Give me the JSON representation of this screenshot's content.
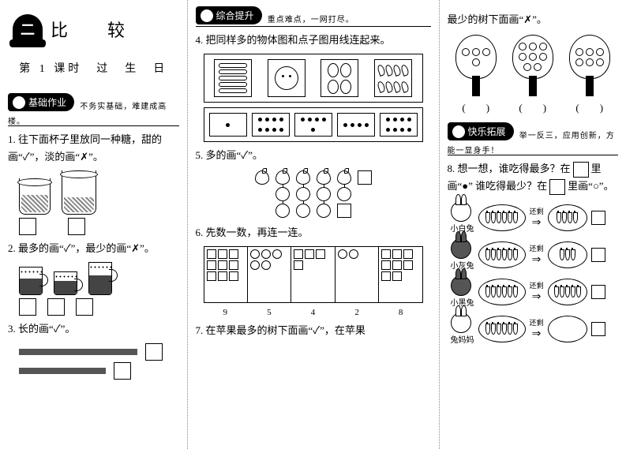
{
  "unit": {
    "badge": "二",
    "title": "比　较"
  },
  "lesson": "第 1 课时　过　生　日",
  "sections": {
    "basic": {
      "label": "基础作业",
      "sub": "不务实基础，难建成高楼。"
    },
    "comp": {
      "label": "综合提升",
      "sub": "重点难点，一网打尽。"
    },
    "ext": {
      "label": "快乐拓展",
      "sub": "举一反三，应用创新，方能一显身手！"
    }
  },
  "q1": "1. 往下面杯子里放同一种糖，甜的画“✓”，淡的画“✗”。",
  "q2": "2. 最多的画“✓”，最少的画“✗”。",
  "q3": "3. 长的画“✓”。",
  "q4": "4. 把同样多的物体图和点子图用线连起来。",
  "q4_counts": {
    "sausages": 5,
    "face": 1,
    "eggs": 4,
    "leaves": 8
  },
  "q4_dots": [
    1,
    8,
    5,
    4,
    8
  ],
  "q5": "5. 多的画“✓”。",
  "q5_counts": {
    "peaches": 5,
    "apples_row1": 4,
    "apples_row2": 3
  },
  "q6": "6. 先数一数，再连一连。",
  "q6_nums": [
    "9",
    "5",
    "4",
    "2",
    "8"
  ],
  "q6_counts": [
    9,
    5,
    4,
    2,
    8
  ],
  "q7a": "7. 在苹果最多的树下面画“✓”，在苹果",
  "q7b": "最少的树下面画“✗”。",
  "q7_trees": [
    4,
    8,
    6
  ],
  "q8a": "8. 想一想，谁吃得最多？在",
  "q8b": "里画“●”",
  "q8c": "谁吃得最少？在",
  "q8d": "里画“○”。",
  "rabbits": [
    {
      "name": "小白兔",
      "dark": false,
      "before": 6,
      "after": 4
    },
    {
      "name": "小灰兔",
      "dark": true,
      "before": 6,
      "after": 3
    },
    {
      "name": "小黑兔",
      "dark": true,
      "before": 6,
      "after": 5
    },
    {
      "name": "兔妈妈",
      "dark": false,
      "before": 6,
      "after": 0
    }
  ],
  "leftover": "还剩",
  "arrow": "⇒",
  "paren": "(　　)"
}
